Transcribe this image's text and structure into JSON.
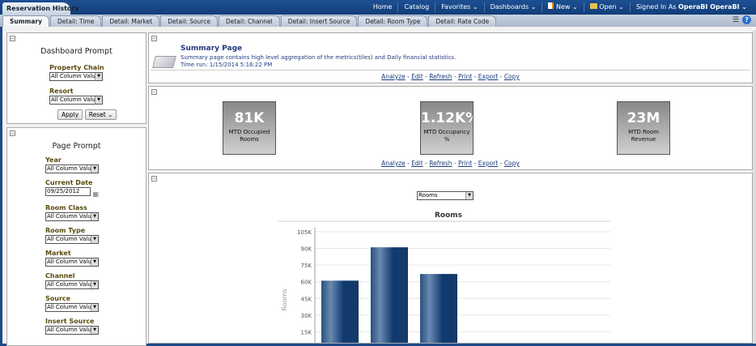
{
  "app": {
    "title": "Reservation History"
  },
  "nav": {
    "home": "Home",
    "catalog": "Catalog",
    "favorites": "Favorites ⌄",
    "dashboards": "Dashboards ⌄",
    "new": "New ⌄",
    "open": "Open ⌄",
    "signed_in": "Signed In As",
    "user": "OperaBI OperaBI ⌄"
  },
  "tabs": [
    "Summary",
    "Detail: Time",
    "Detail: Market",
    "Detail: Source",
    "Detail: Channel",
    "Detail: Insert Source",
    "Detail: Room Type",
    "Detail: Rate Code"
  ],
  "dashboard_prompt": {
    "title": "Dashboard Prompt",
    "fields": [
      {
        "label": "Property Chain",
        "value": "All Column Value"
      },
      {
        "label": "Resort",
        "value": "All Column Value"
      }
    ],
    "apply": "Apply",
    "reset": "Reset ⌄"
  },
  "page_prompt": {
    "title": "Page Prompt",
    "fields": [
      {
        "label": "Year",
        "value": "All Column Value"
      },
      {
        "label": "Current Date",
        "value": "09/25/2012"
      },
      {
        "label": "Room Class",
        "value": "All Column Value"
      },
      {
        "label": "Room Type",
        "value": "All Column Value"
      },
      {
        "label": "Market",
        "value": "All Column Value"
      },
      {
        "label": "Channel",
        "value": "All Column Value"
      },
      {
        "label": "Source",
        "value": "All Column Value"
      },
      {
        "label": "Insert Source",
        "value": "All Column Values)"
      }
    ]
  },
  "summary": {
    "title": "Summary Page",
    "description": "Summary page contains high level aggregation of the metrics(tiles) and Daily financial statistics.",
    "time_run": "Time run: 1/15/2014 5:16:22 PM"
  },
  "links": [
    "Analyze",
    "Edit",
    "Refresh",
    "Print",
    "Export",
    "Copy"
  ],
  "tiles": [
    {
      "value": "81K",
      "label": "MTD Occupied Rooms"
    },
    {
      "value": "1.12K%",
      "label": "MTD Occupancy %"
    },
    {
      "value": "23M",
      "label": "MTD Room Revenue"
    }
  ],
  "chart_selector": "Rooms",
  "chart_data": {
    "type": "bar",
    "title": "Rooms",
    "ylabel": "Rooms",
    "yticks": [
      "15K",
      "30K",
      "45K",
      "60K",
      "75K",
      "90K",
      "105K"
    ],
    "ylim": [
      0,
      105000
    ],
    "values": [
      61000,
      91000,
      67000
    ],
    "grid": true,
    "color": "#1f4a80"
  }
}
